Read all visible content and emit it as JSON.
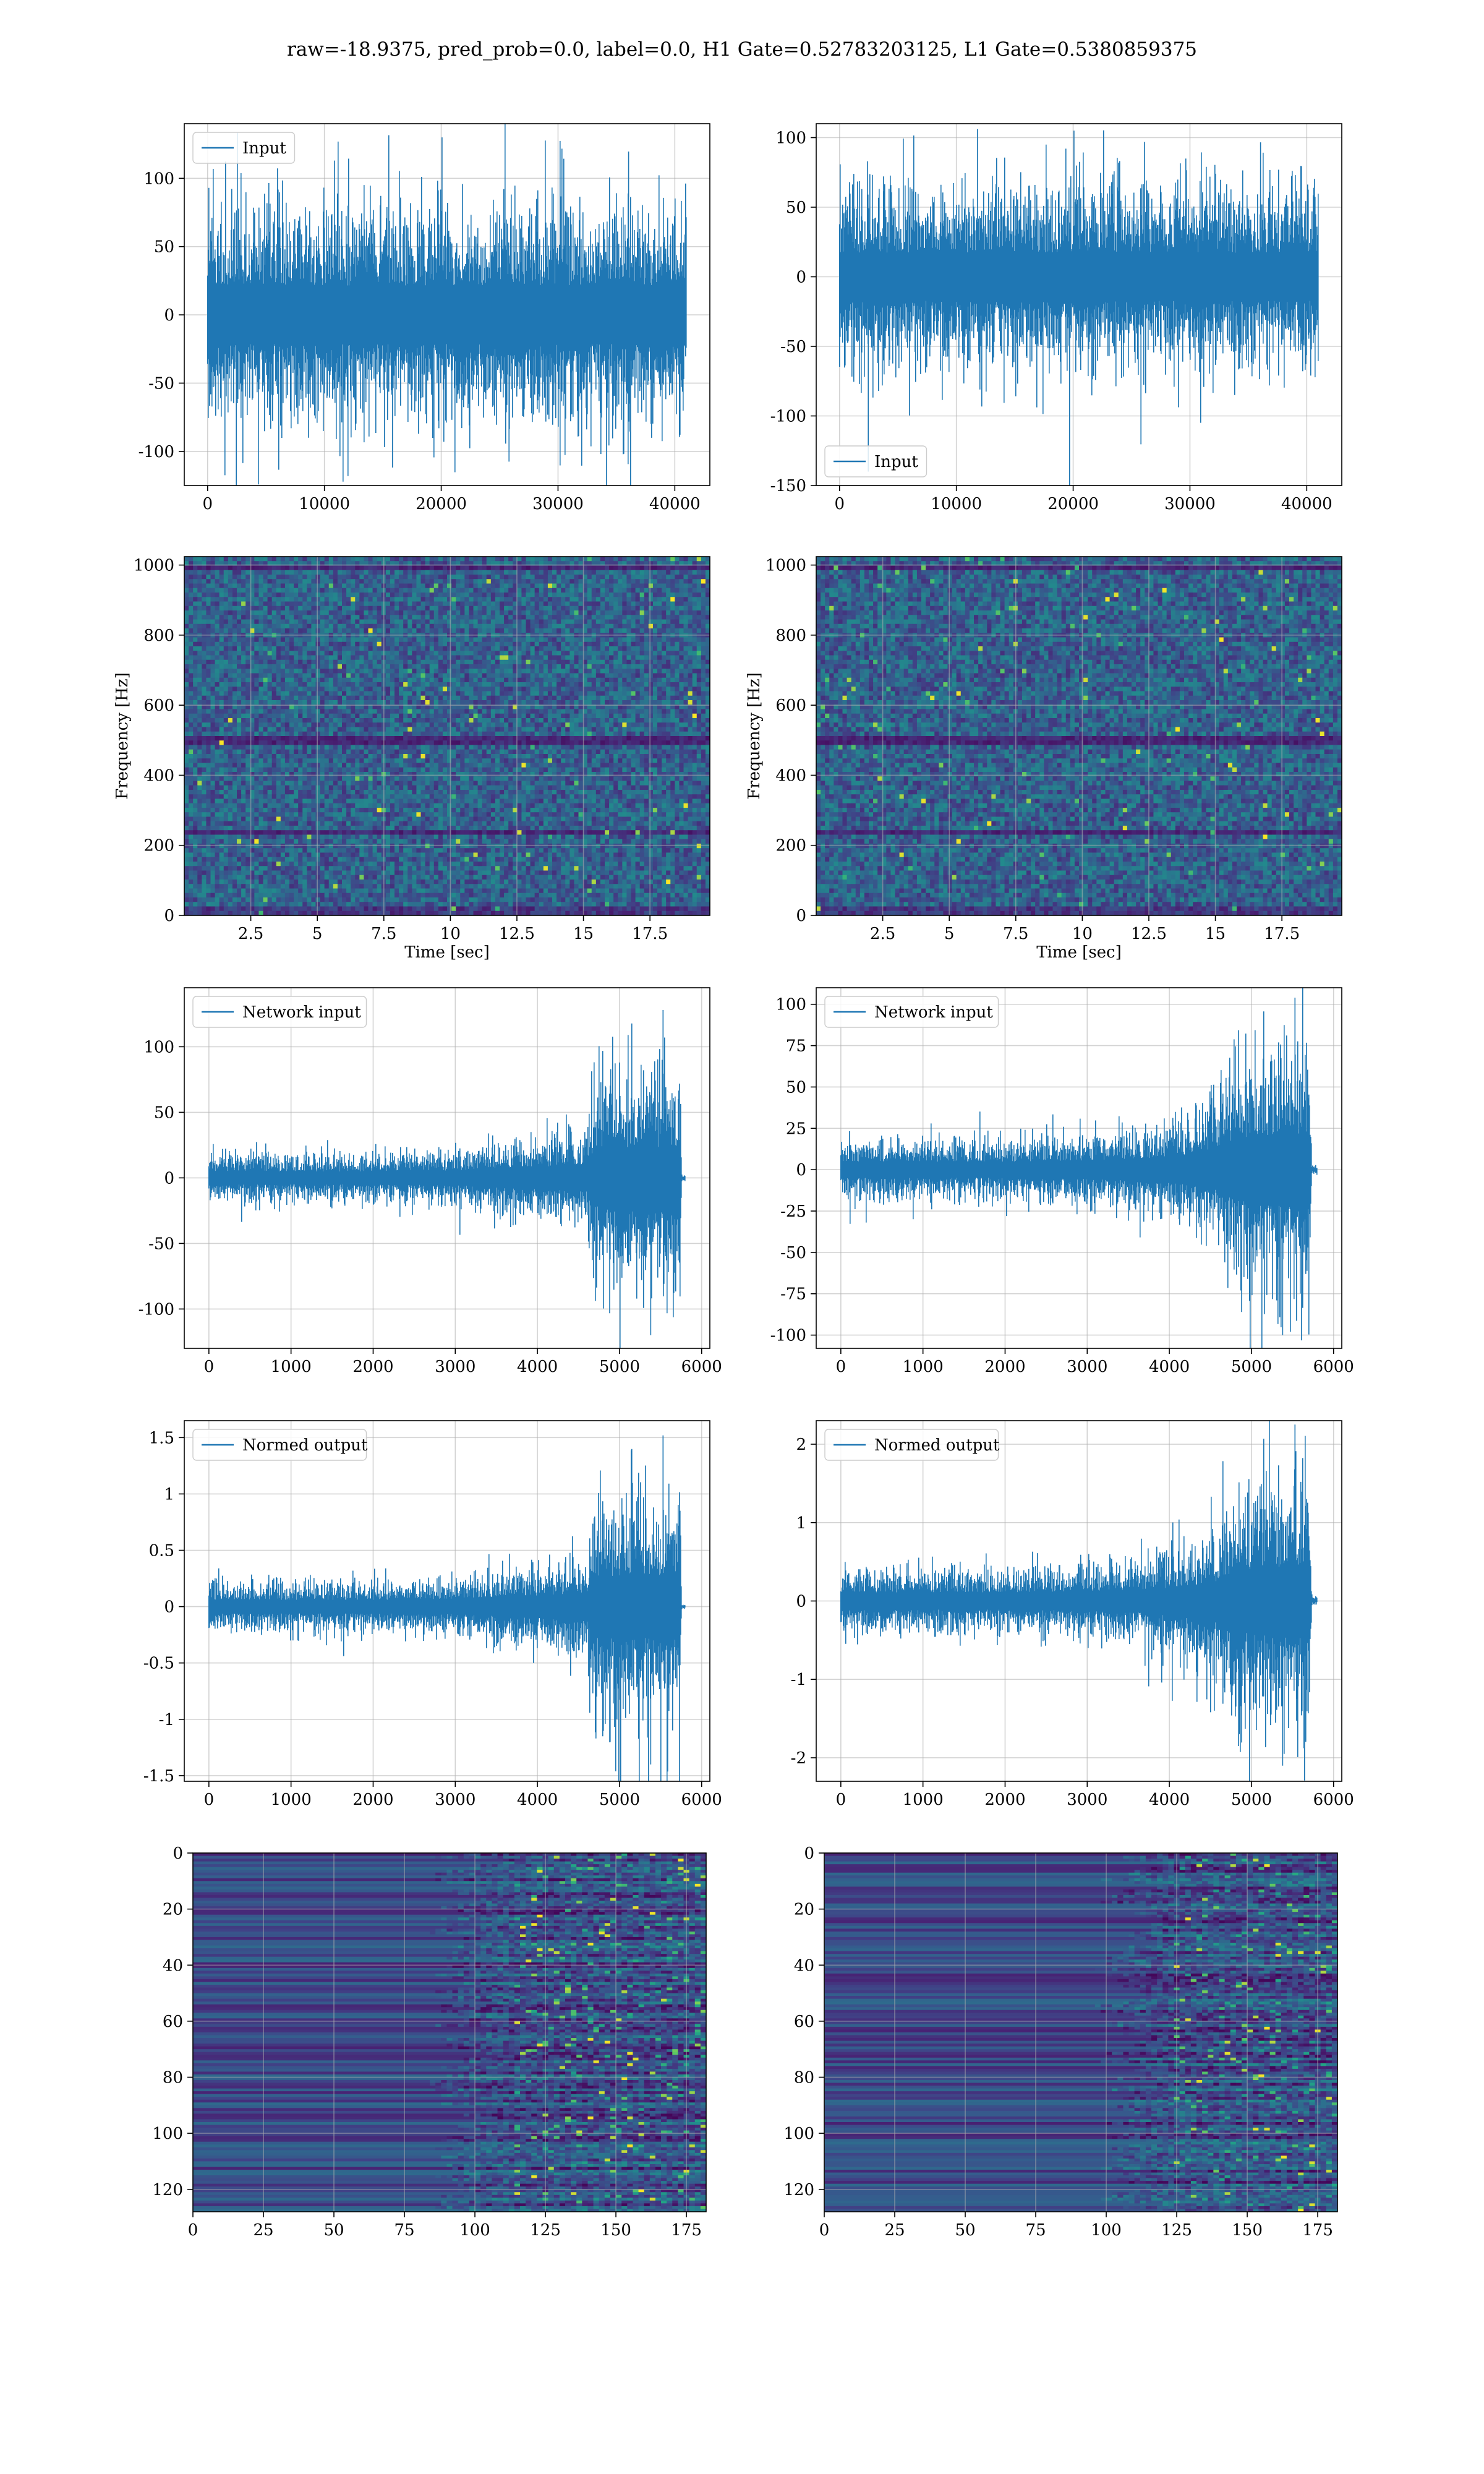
{
  "page": {
    "title": "raw=-18.9375, pred_prob=0.0, label=0.0, H1 Gate=0.52783203125, L1 Gate=0.5380859375"
  },
  "colors": {
    "line": "#1f77b4",
    "grid": "#b0b0b0",
    "viridis_dark": "#440154",
    "viridis_purple": "#3b2883",
    "viridis_teal": "#21918c",
    "viridis_green": "#5ec962",
    "viridis_yellow": "#fde725"
  },
  "chart_data": [
    {
      "id": "h1-input",
      "type": "line",
      "column": "left",
      "row": 0,
      "series": [
        {
          "name": "Input",
          "values_summary": "white noise, amplitude ~±60, extremes to ~130 / ~-125"
        }
      ],
      "legend": "upper left",
      "xlim": [
        -2000,
        43000
      ],
      "ylim": [
        -125,
        140
      ],
      "xticks": [
        0,
        10000,
        20000,
        30000,
        40000
      ],
      "yticks": [
        -100,
        -50,
        0,
        50,
        100
      ],
      "x_extent": [
        0,
        40960
      ],
      "envelope": [],
      "spikes": [
        130,
        -125
      ],
      "xlabel": "",
      "ylabel": "",
      "grid": true
    },
    {
      "id": "l1-input",
      "type": "line",
      "column": "right",
      "row": 0,
      "series": [
        {
          "name": "Input",
          "values_summary": "white noise, amplitude ~±60, extremes to ~105 / ~-140"
        }
      ],
      "legend": "lower left",
      "xlim": [
        -2000,
        43000
      ],
      "ylim": [
        -150,
        110
      ],
      "xticks": [
        0,
        10000,
        20000,
        30000,
        40000
      ],
      "yticks": [
        -150,
        -100,
        -50,
        0,
        50,
        100
      ],
      "x_extent": [
        0,
        40960
      ],
      "envelope": [],
      "spikes": [
        105,
        -140
      ],
      "xlabel": "",
      "ylabel": "",
      "grid": true
    },
    {
      "id": "h1-spectrogram",
      "type": "heatmap",
      "column": "left",
      "row": 1,
      "xlim": [
        0,
        19.75
      ],
      "ylim": [
        0,
        1024
      ],
      "xticks": [
        2.5,
        5.0,
        7.5,
        10.0,
        12.5,
        15.0,
        17.5
      ],
      "yticks": [
        0,
        200,
        400,
        600,
        800,
        1000
      ],
      "xlabel": "Time [sec]",
      "ylabel": "Frequency [Hz]",
      "colormap": "viridis",
      "grid": true
    },
    {
      "id": "l1-spectrogram",
      "type": "heatmap",
      "column": "right",
      "row": 1,
      "xlim": [
        0,
        19.75
      ],
      "ylim": [
        0,
        1024
      ],
      "xticks": [
        2.5,
        5.0,
        7.5,
        10.0,
        12.5,
        15.0,
        17.5
      ],
      "yticks": [
        0,
        200,
        400,
        600,
        800,
        1000
      ],
      "xlabel": "Time [sec]",
      "ylabel": "Frequency [Hz]",
      "colormap": "viridis",
      "grid": true
    },
    {
      "id": "h1-network-input",
      "type": "line",
      "column": "left",
      "row": 2,
      "series": [
        {
          "name": "Network input"
        }
      ],
      "legend": "upper left",
      "xlim": [
        -300,
        6100
      ],
      "ylim": [
        -130,
        145
      ],
      "xticks": [
        0,
        1000,
        2000,
        3000,
        4000,
        5000,
        6000
      ],
      "yticks": [
        -100,
        -50,
        0,
        50,
        100
      ],
      "x_extent": [
        0,
        5800
      ],
      "envelope": [
        [
          0,
          15
        ],
        [
          1000,
          14
        ],
        [
          2000,
          14
        ],
        [
          3000,
          16
        ],
        [
          3500,
          20
        ],
        [
          4000,
          24
        ],
        [
          4600,
          28
        ],
        [
          4700,
          62
        ],
        [
          5000,
          65
        ],
        [
          5400,
          66
        ],
        [
          5740,
          68
        ],
        [
          5760,
          2
        ],
        [
          5800,
          2
        ]
      ],
      "spikes": [
        128,
        -120
      ],
      "xlabel": "",
      "ylabel": "",
      "grid": true
    },
    {
      "id": "l1-network-input",
      "type": "line",
      "column": "right",
      "row": 2,
      "series": [
        {
          "name": "Network input"
        }
      ],
      "legend": "upper left",
      "xlim": [
        -300,
        6100
      ],
      "ylim": [
        -108,
        110
      ],
      "xticks": [
        0,
        1000,
        2000,
        3000,
        4000,
        5000,
        6000
      ],
      "yticks": [
        -100,
        -75,
        -50,
        -25,
        0,
        25,
        50,
        75,
        100
      ],
      "x_extent": [
        0,
        5800
      ],
      "envelope": [
        [
          0,
          14
        ],
        [
          1000,
          14
        ],
        [
          2000,
          14
        ],
        [
          3000,
          16
        ],
        [
          3500,
          18
        ],
        [
          4000,
          22
        ],
        [
          4400,
          28
        ],
        [
          4600,
          34
        ],
        [
          4800,
          52
        ],
        [
          5100,
          56
        ],
        [
          5400,
          58
        ],
        [
          5700,
          60
        ],
        [
          5740,
          2
        ],
        [
          5800,
          2
        ]
      ],
      "spikes": [
        104,
        -100
      ],
      "xlabel": "",
      "ylabel": "",
      "grid": true
    },
    {
      "id": "h1-normed-output",
      "type": "line",
      "column": "left",
      "row": 3,
      "series": [
        {
          "name": "Normed output"
        }
      ],
      "legend": "upper left",
      "xlim": [
        -300,
        6100
      ],
      "ylim": [
        -1.55,
        1.65
      ],
      "xticks": [
        0,
        1000,
        2000,
        3000,
        4000,
        5000,
        6000
      ],
      "yticks": [
        -1.5,
        -1.0,
        -0.5,
        0.0,
        0.5,
        1.0,
        1.5
      ],
      "x_extent": [
        0,
        5800
      ],
      "envelope": [
        [
          0,
          0.18
        ],
        [
          1000,
          0.17
        ],
        [
          2000,
          0.17
        ],
        [
          3000,
          0.19
        ],
        [
          3500,
          0.24
        ],
        [
          4000,
          0.28
        ],
        [
          4600,
          0.33
        ],
        [
          4700,
          0.72
        ],
        [
          5000,
          0.78
        ],
        [
          5400,
          0.8
        ],
        [
          5740,
          0.82
        ],
        [
          5760,
          0.02
        ],
        [
          5800,
          0.02
        ]
      ],
      "spikes": [
        1.52,
        -1.4
      ],
      "xlabel": "",
      "ylabel": "",
      "grid": true
    },
    {
      "id": "l1-normed-output",
      "type": "line",
      "column": "right",
      "row": 3,
      "series": [
        {
          "name": "Normed output"
        }
      ],
      "legend": "upper left",
      "xlim": [
        -300,
        6100
      ],
      "ylim": [
        -2.3,
        2.3
      ],
      "xticks": [
        0,
        1000,
        2000,
        3000,
        4000,
        5000,
        6000
      ],
      "yticks": [
        -2,
        -1,
        0,
        1,
        2
      ],
      "x_extent": [
        0,
        5800
      ],
      "envelope": [
        [
          0,
          0.32
        ],
        [
          1000,
          0.31
        ],
        [
          2000,
          0.31
        ],
        [
          3000,
          0.35
        ],
        [
          3500,
          0.4
        ],
        [
          4000,
          0.48
        ],
        [
          4400,
          0.6
        ],
        [
          4600,
          0.72
        ],
        [
          4800,
          1.1
        ],
        [
          5100,
          1.2
        ],
        [
          5400,
          1.25
        ],
        [
          5700,
          1.3
        ],
        [
          5740,
          0.04
        ],
        [
          5800,
          0.04
        ]
      ],
      "spikes": [
        2.25,
        -2.1
      ],
      "xlabel": "",
      "ylabel": "",
      "grid": true
    },
    {
      "id": "h1-feature-map",
      "type": "heatmap",
      "column": "left",
      "row": 4,
      "xlim": [
        0,
        182
      ],
      "ylim": [
        128,
        0
      ],
      "xticks": [
        0,
        25,
        50,
        75,
        100,
        125,
        150,
        175
      ],
      "yticks": [
        0,
        20,
        40,
        60,
        80,
        100,
        120
      ],
      "xlabel": "",
      "ylabel": "",
      "colormap": "viridis",
      "grid": true,
      "active_from": 100
    },
    {
      "id": "l1-feature-map",
      "type": "heatmap",
      "column": "right",
      "row": 4,
      "xlim": [
        0,
        182
      ],
      "ylim": [
        128,
        0
      ],
      "xticks": [
        0,
        25,
        50,
        75,
        100,
        125,
        150,
        175
      ],
      "yticks": [
        0,
        20,
        40,
        60,
        80,
        100,
        120
      ],
      "xlabel": "",
      "ylabel": "",
      "colormap": "viridis",
      "grid": true,
      "active_from": 112
    }
  ]
}
